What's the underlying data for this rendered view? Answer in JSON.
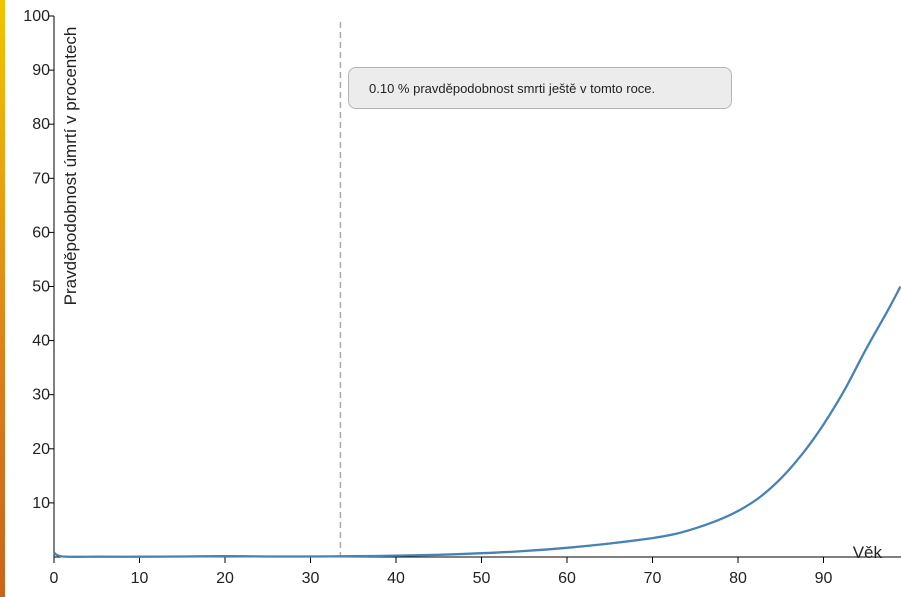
{
  "chart_data": {
    "type": "line",
    "xlabel": "Věk",
    "ylabel": "Pravděpodobnost úmrtí v procentech",
    "xlim": [
      0,
      99
    ],
    "ylim": [
      0,
      100
    ],
    "x_ticks": [
      0,
      10,
      20,
      30,
      40,
      50,
      60,
      70,
      80,
      90
    ],
    "y_ticks": [
      10,
      20,
      30,
      40,
      50,
      60,
      70,
      80,
      90,
      100
    ],
    "grid": false,
    "line_color": "#4682b4",
    "marker_color": "#aaaaaa",
    "marker_x": 33.5,
    "tooltip_text": "0.10 % pravděpodobnost smrti ještě v tomto roce.",
    "series": [
      {
        "x": [
          0,
          1,
          5,
          10,
          15,
          20,
          25,
          30,
          35,
          40,
          45,
          50,
          55,
          60,
          65,
          70,
          72.5,
          75,
          77.5,
          80,
          82.5,
          85,
          87.5,
          90,
          92.5,
          95,
          97.5,
          99
        ],
        "y": [
          0.8,
          0.1,
          0.05,
          0.05,
          0.1,
          0.15,
          0.1,
          0.1,
          0.15,
          0.25,
          0.4,
          0.7,
          1.1,
          1.7,
          2.5,
          3.5,
          4.2,
          5.3,
          6.7,
          8.5,
          11,
          14.5,
          19,
          24.5,
          31,
          38.5,
          45.5,
          50
        ]
      }
    ]
  }
}
